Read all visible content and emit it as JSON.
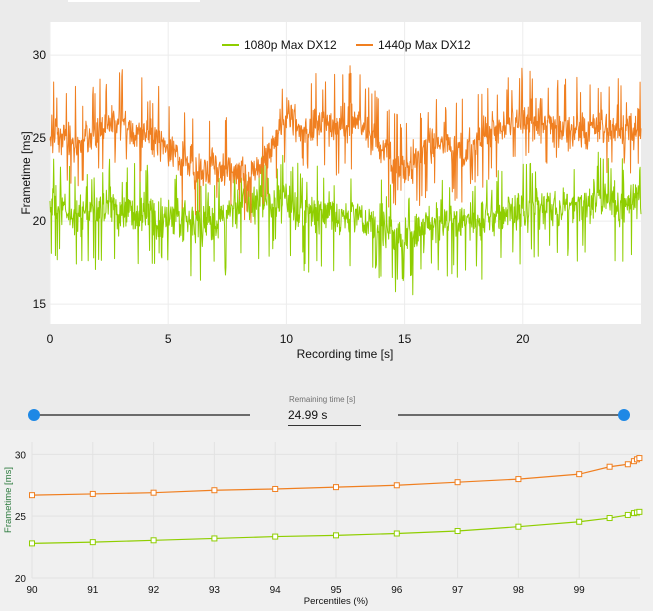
{
  "chart_data": [
    {
      "type": "line",
      "title": "",
      "xlabel": "Recording time [s]",
      "ylabel": "Frametime [ms]",
      "xlim": [
        0,
        25
      ],
      "ylim": [
        13.8,
        32
      ],
      "xticks": [
        0,
        5,
        10,
        15,
        20
      ],
      "yticks": [
        15,
        20,
        25,
        30
      ],
      "grid": true,
      "legend_position": "top-center",
      "series": [
        {
          "name": "1080p Max DX12",
          "color": "#8fce00",
          "x": [
            0,
            0.5,
            1,
            1.5,
            2,
            2.5,
            3,
            3.5,
            4,
            4.5,
            5,
            5.5,
            6,
            6.5,
            7,
            7.5,
            8,
            8.5,
            9,
            9.5,
            10,
            10.5,
            11,
            11.5,
            12,
            12.5,
            13,
            13.5,
            14,
            14.5,
            15,
            15.5,
            16,
            16.5,
            17,
            17.5,
            18,
            18.5,
            19,
            19.5,
            20,
            20.5,
            21,
            21.5,
            22,
            22.5,
            23,
            23.5,
            24,
            24.5,
            25
          ],
          "values": [
            21,
            20.8,
            20.2,
            20.5,
            20.7,
            20.9,
            20.5,
            20.6,
            20.8,
            20.3,
            20.2,
            20,
            19.8,
            19.7,
            20.1,
            20.4,
            20.8,
            21,
            21.5,
            21.3,
            21,
            20.6,
            20.5,
            20.4,
            20.3,
            20.2,
            20.3,
            19.8,
            19.6,
            19.3,
            19,
            19.2,
            19.7,
            20.1,
            20.3,
            20.1,
            19.9,
            20,
            20.2,
            20.4,
            20.6,
            20.7,
            20.9,
            20.8,
            20.9,
            21.1,
            21.3,
            21.2,
            21,
            21.3,
            21.2
          ],
          "noise": 1.2,
          "spike_count": 160,
          "spike_high_max": 2.9,
          "spike_low_max": 3.6
        },
        {
          "name": "1440p Max DX12",
          "color": "#f07f20",
          "x": [
            0,
            0.5,
            1,
            1.5,
            2,
            2.5,
            3,
            3.5,
            4,
            4.5,
            5,
            5.5,
            6,
            6.5,
            7,
            7.5,
            8,
            8.5,
            9,
            9.5,
            10,
            10.5,
            11,
            11.5,
            12,
            12.5,
            13,
            13.5,
            14,
            14.5,
            15,
            15.5,
            16,
            16.5,
            17,
            17.5,
            18,
            18.5,
            19,
            19.5,
            20,
            20.5,
            21,
            21.5,
            22,
            22.5,
            23,
            23.5,
            24,
            24.5,
            25
          ],
          "values": [
            25.2,
            25,
            24.7,
            24.9,
            25.3,
            25.8,
            25.9,
            25.5,
            25.2,
            24.9,
            24.5,
            23.8,
            23.2,
            23.2,
            23.3,
            23.2,
            22.8,
            22.7,
            23.5,
            25,
            26.3,
            25.8,
            25.5,
            25.8,
            25.6,
            25.9,
            26.1,
            25.2,
            24.6,
            23.4,
            23.1,
            23.7,
            24.5,
            24.8,
            24.2,
            24.1,
            24.7,
            25.2,
            25.5,
            25.8,
            26,
            26.1,
            25.9,
            25.6,
            25.3,
            25.4,
            25.7,
            25.6,
            25.5,
            25.9,
            25.3
          ],
          "noise": 1.1,
          "spike_count": 160,
          "spike_high_max": 3.4,
          "spike_low_max": 3.0
        }
      ]
    },
    {
      "type": "line",
      "title": "",
      "xlabel": "Percentiles (%)",
      "ylabel": "Frametime [ms]",
      "xlim": [
        90,
        100
      ],
      "ylim": [
        20,
        31
      ],
      "xticks": [
        90,
        91,
        92,
        93,
        94,
        95,
        96,
        97,
        98,
        99
      ],
      "yticks": [
        20,
        25,
        30
      ],
      "grid": true,
      "series": [
        {
          "name": "1440p Max DX12",
          "color": "#f07f20",
          "x": [
            90,
            91,
            92,
            93,
            94,
            95,
            96,
            97,
            98,
            99,
            99.5,
            99.8,
            99.9,
            99.95,
            99.99
          ],
          "values": [
            26.7,
            26.8,
            26.9,
            27.1,
            27.2,
            27.35,
            27.5,
            27.75,
            28.0,
            28.4,
            29.0,
            29.2,
            29.45,
            29.6,
            29.7
          ]
        },
        {
          "name": "1080p Max DX12",
          "color": "#8fce00",
          "x": [
            90,
            91,
            92,
            93,
            94,
            95,
            96,
            97,
            98,
            99,
            99.5,
            99.8,
            99.9,
            99.95,
            99.99
          ],
          "values": [
            22.8,
            22.9,
            23.05,
            23.2,
            23.35,
            23.45,
            23.6,
            23.8,
            24.15,
            24.55,
            24.85,
            25.1,
            25.25,
            25.3,
            25.35
          ]
        }
      ]
    }
  ],
  "range_slider": {
    "label": "Remaining time [s]",
    "value": "24.99 s",
    "start": 0.0,
    "end": 1.0
  }
}
